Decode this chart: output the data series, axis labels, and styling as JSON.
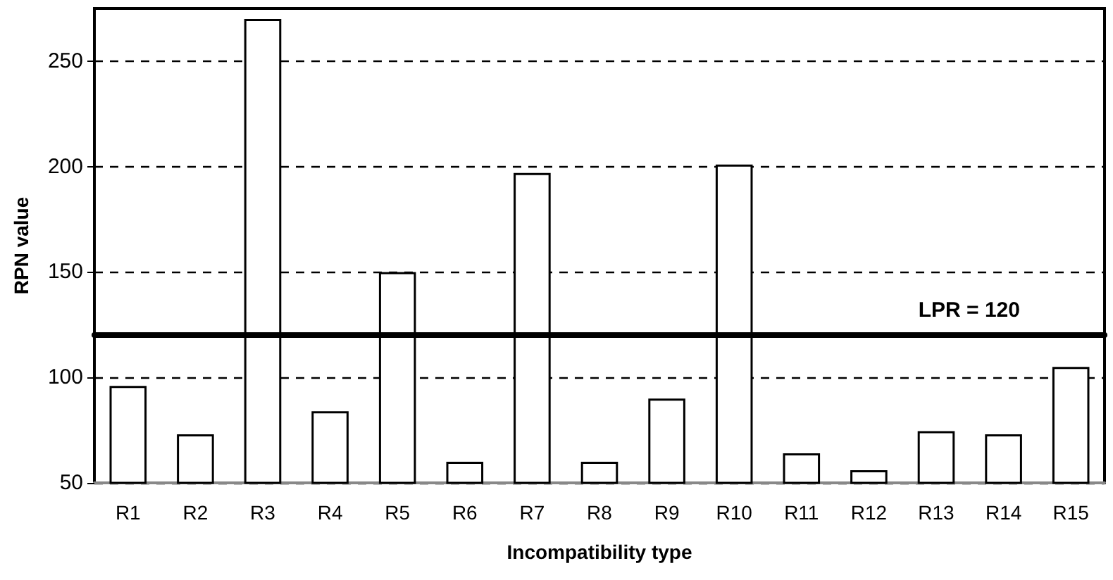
{
  "chart_data": {
    "type": "bar",
    "xlabel": "Incompatibility type",
    "ylabel": "RPN value",
    "categories": [
      "R1",
      "R2",
      "R3",
      "R4",
      "R5",
      "R6",
      "R7",
      "R8",
      "R9",
      "R10",
      "R11",
      "R12",
      "R13",
      "R14",
      "R15"
    ],
    "values": [
      96,
      73,
      270,
      84,
      150,
      60,
      197,
      60,
      90,
      201,
      64,
      56,
      74.5,
      73,
      105
    ],
    "color": "#ffffff",
    "ylim": [
      50,
      275
    ],
    "yticks": [
      50,
      100,
      150,
      200,
      250
    ],
    "grid": "y",
    "ref_lines": [
      {
        "axis": "y",
        "value": 120,
        "label": "LPR = 120",
        "color": "#000000",
        "line_style": "solid"
      }
    ]
  }
}
